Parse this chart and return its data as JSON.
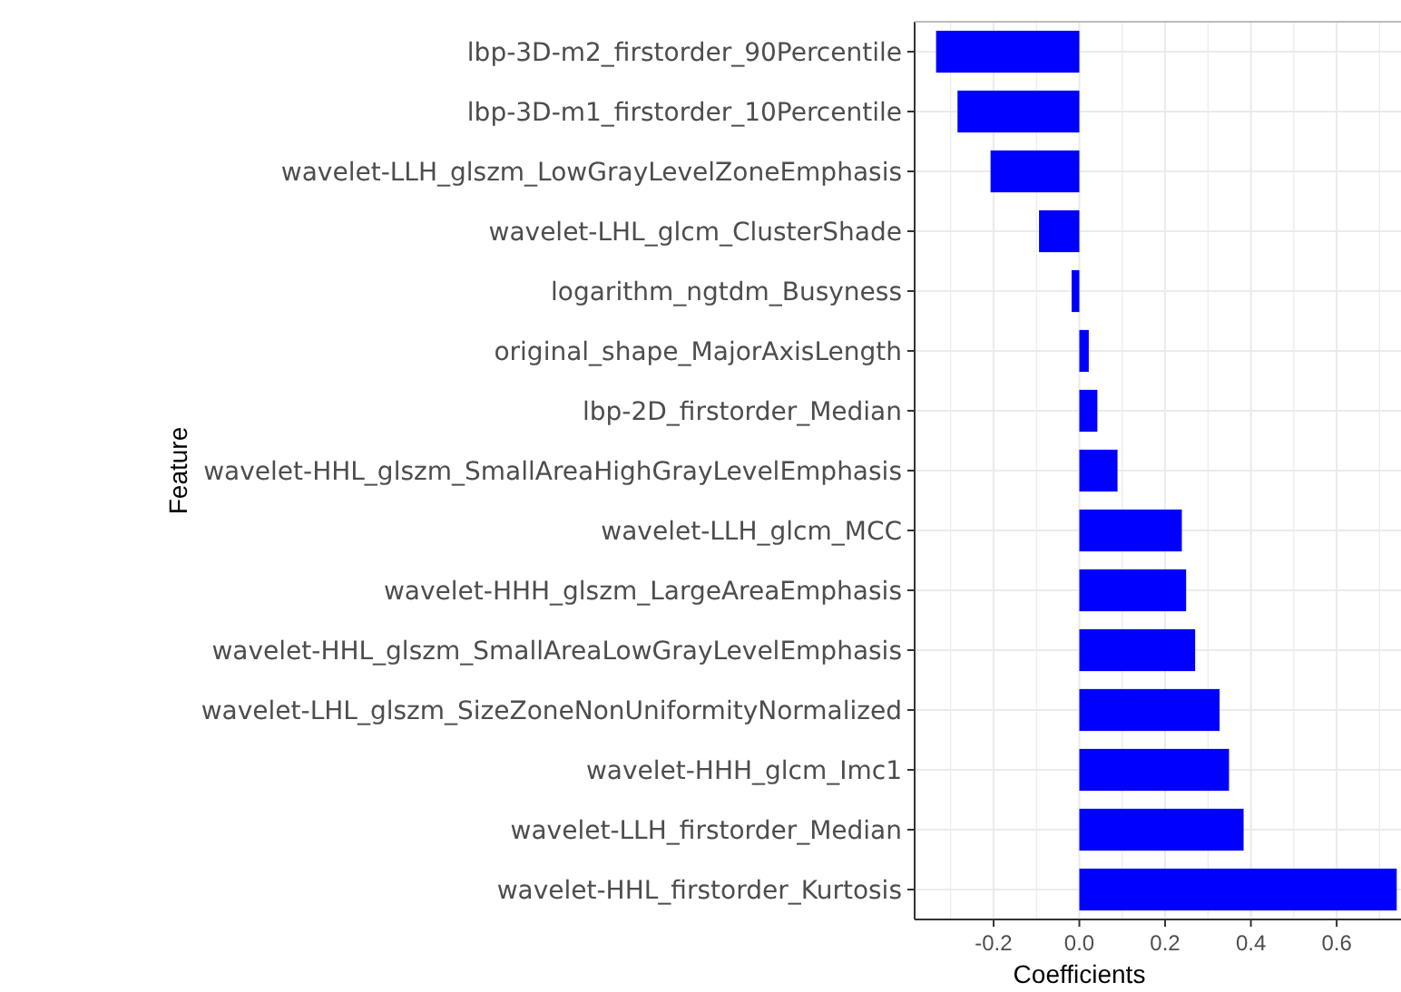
{
  "chart_data": {
    "type": "bar",
    "orientation": "horizontal",
    "xlabel": "Coefficients",
    "ylabel": "Feature",
    "categories": [
      "lbp-3D-m2_firstorder_90Percentile",
      "lbp-3D-m1_firstorder_10Percentile",
      "wavelet-LLH_glszm_LowGrayLevelZoneEmphasis",
      "wavelet-LHL_glcm_ClusterShade",
      "logarithm_ngtdm_Busyness",
      "original_shape_MajorAxisLength",
      "lbp-2D_firstorder_Median",
      "wavelet-HHL_glszm_SmallAreaHighGrayLevelEmphasis",
      "wavelet-LLH_glcm_MCC",
      "wavelet-HHH_glszm_LargeAreaEmphasis",
      "wavelet-HHL_glszm_SmallAreaLowGrayLevelEmphasis",
      "wavelet-LHL_glszm_SizeZoneNonUniformityNormalized",
      "wavelet-HHH_glcm_Imc1",
      "wavelet-LLH_firstorder_Median",
      "wavelet-HHL_firstorder_Kurtosis"
    ],
    "values": [
      -0.334,
      -0.284,
      -0.207,
      -0.094,
      -0.018,
      0.022,
      0.042,
      0.089,
      0.239,
      0.249,
      0.27,
      0.327,
      0.349,
      0.383,
      0.74
    ],
    "color": "#0000ff",
    "xlim": [
      -0.384,
      0.75
    ],
    "xticks": [
      {
        "value": -0.3,
        "label": null
      },
      {
        "value": -0.2,
        "label": "-0.2"
      },
      {
        "value": -0.1,
        "label": null
      },
      {
        "value": 0,
        "label": "0.0"
      },
      {
        "value": 0.1,
        "label": null
      },
      {
        "value": 0.2,
        "label": "0.2"
      },
      {
        "value": 0.3,
        "label": null
      },
      {
        "value": 0.4,
        "label": "0.4"
      },
      {
        "value": 0.5,
        "label": null
      },
      {
        "value": 0.6,
        "label": "0.6"
      },
      {
        "value": 0.7,
        "label": null
      }
    ],
    "grid": true
  }
}
